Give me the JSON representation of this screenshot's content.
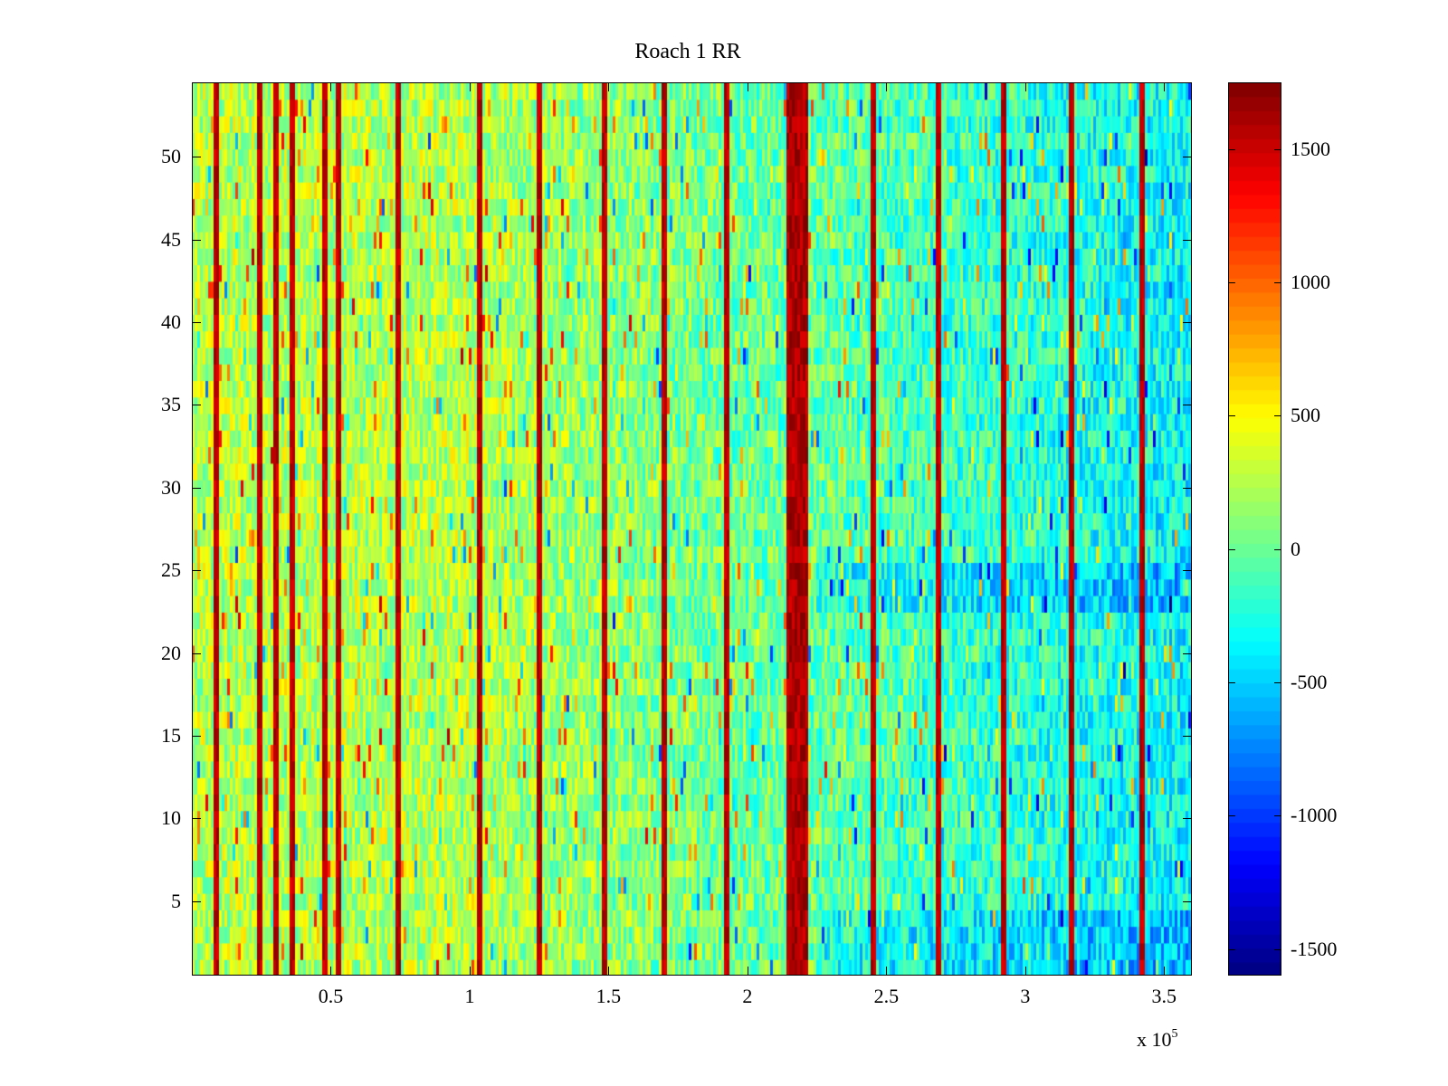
{
  "chart_data": {
    "type": "heatmap",
    "title": "Roach 1 RR",
    "xlabel": "",
    "ylabel": "",
    "x_multiplier_label": "x 10",
    "x_multiplier_exponent": "5",
    "xlim": [
      0,
      360000
    ],
    "ylim": [
      0.5,
      54.5
    ],
    "x_ticks": [
      {
        "value": 50000,
        "label": "0.5"
      },
      {
        "value": 100000,
        "label": "1"
      },
      {
        "value": 150000,
        "label": "1.5"
      },
      {
        "value": 200000,
        "label": "2"
      },
      {
        "value": 250000,
        "label": "2.5"
      },
      {
        "value": 300000,
        "label": "3"
      },
      {
        "value": 350000,
        "label": "3.5"
      }
    ],
    "y_ticks": [
      {
        "value": 5,
        "label": "5"
      },
      {
        "value": 10,
        "label": "10"
      },
      {
        "value": 15,
        "label": "15"
      },
      {
        "value": 20,
        "label": "20"
      },
      {
        "value": 25,
        "label": "25"
      },
      {
        "value": 30,
        "label": "30"
      },
      {
        "value": 35,
        "label": "35"
      },
      {
        "value": 40,
        "label": "40"
      },
      {
        "value": 45,
        "label": "45"
      },
      {
        "value": 50,
        "label": "50"
      }
    ],
    "colorbar": {
      "colormap": "jet",
      "clim": [
        -1600,
        1750
      ],
      "ticks": [
        {
          "value": -1500,
          "label": "-1500"
        },
        {
          "value": -1000,
          "label": "-1000"
        },
        {
          "value": -500,
          "label": "-500"
        },
        {
          "value": 0,
          "label": "0"
        },
        {
          "value": 500,
          "label": "500"
        },
        {
          "value": 1000,
          "label": "1000"
        },
        {
          "value": 1500,
          "label": "1500"
        }
      ]
    },
    "rows": 54,
    "baseline_profile": [
      {
        "x": 0,
        "value": 250
      },
      {
        "x": 100000,
        "value": 250
      },
      {
        "x": 200000,
        "value": 0
      },
      {
        "x": 220000,
        "value": 0
      },
      {
        "x": 360000,
        "value": -350
      }
    ],
    "high_band": {
      "x_start": 214000,
      "x_end": 222000,
      "value": 1600
    },
    "spike_lines_x": [
      8000,
      24000,
      30000,
      36000,
      47000,
      52000,
      74000,
      103000,
      125000,
      148000,
      170000,
      192000,
      245000,
      268000,
      292000,
      316000,
      342000
    ]
  }
}
